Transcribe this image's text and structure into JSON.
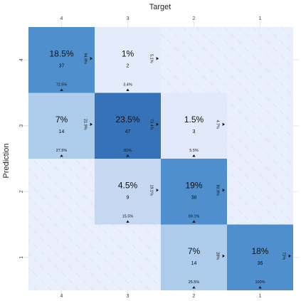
{
  "chart_data": {
    "type": "heatmap",
    "title": "",
    "xlabel": "Target",
    "ylabel": "Prediction",
    "columns": [
      "4",
      "3",
      "2",
      "1"
    ],
    "rows": [
      "4",
      "3",
      "2",
      "1"
    ],
    "cells": [
      {
        "row": "4",
        "col": "4",
        "pct": "18.5%",
        "count": "37",
        "col_pct": "72.5%",
        "row_pct": "94.9%",
        "color": "#4f8fcd"
      },
      {
        "row": "4",
        "col": "3",
        "pct": "1%",
        "count": "2",
        "col_pct": "3.4%",
        "row_pct": "5.1%",
        "color": "#e4ebfb"
      },
      {
        "row": "4",
        "col": "2",
        "pct": "",
        "count": "",
        "col_pct": "",
        "row_pct": "",
        "color": "#e9effd",
        "hatched": true
      },
      {
        "row": "4",
        "col": "1",
        "pct": "",
        "count": "",
        "col_pct": "",
        "row_pct": "",
        "color": "#e9effd",
        "hatched": true
      },
      {
        "row": "3",
        "col": "4",
        "pct": "7%",
        "count": "14",
        "col_pct": "27.5%",
        "row_pct": "21.9%",
        "color": "#adcbea"
      },
      {
        "row": "3",
        "col": "3",
        "pct": "23.5%",
        "count": "47",
        "col_pct": "81%",
        "row_pct": "73.4%",
        "color": "#3672b8"
      },
      {
        "row": "3",
        "col": "2",
        "pct": "1.5%",
        "count": "3",
        "col_pct": "5.5%",
        "row_pct": "4.7%",
        "color": "#e1e9fa"
      },
      {
        "row": "3",
        "col": "1",
        "pct": "",
        "count": "",
        "col_pct": "",
        "row_pct": "",
        "color": "#e9effd",
        "hatched": true
      },
      {
        "row": "2",
        "col": "4",
        "pct": "",
        "count": "",
        "col_pct": "",
        "row_pct": "",
        "color": "#e9effd",
        "hatched": true
      },
      {
        "row": "2",
        "col": "3",
        "pct": "4.5%",
        "count": "9",
        "col_pct": "15.5%",
        "row_pct": "19.1%",
        "color": "#c6d8f1"
      },
      {
        "row": "2",
        "col": "2",
        "pct": "19%",
        "count": "38",
        "col_pct": "69.1%",
        "row_pct": "80.9%",
        "color": "#4f8fcd"
      },
      {
        "row": "2",
        "col": "1",
        "pct": "",
        "count": "",
        "col_pct": "",
        "row_pct": "",
        "color": "#e9effd",
        "hatched": true
      },
      {
        "row": "1",
        "col": "4",
        "pct": "",
        "count": "",
        "col_pct": "",
        "row_pct": "",
        "color": "#e9effd",
        "hatched": true
      },
      {
        "row": "1",
        "col": "3",
        "pct": "",
        "count": "",
        "col_pct": "",
        "row_pct": "",
        "color": "#e9effd",
        "hatched": true
      },
      {
        "row": "1",
        "col": "2",
        "pct": "7%",
        "count": "14",
        "col_pct": "25.5%",
        "row_pct": "28%",
        "color": "#adcbea"
      },
      {
        "row": "1",
        "col": "1",
        "pct": "18%",
        "count": "36",
        "col_pct": "100%",
        "row_pct": "72%",
        "color": "#4f8fcd"
      }
    ]
  }
}
